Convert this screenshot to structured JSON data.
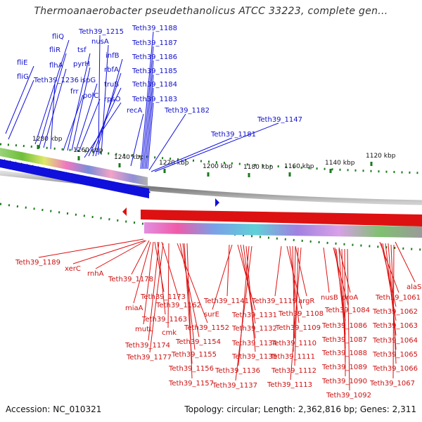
{
  "title": "Thermoanaerobacter pseudethanolicus ATCC 33223, complete gen...",
  "footer": {
    "accession": "Accession: NC_010321",
    "topology": "Topology: circular; Length: 2,362,816 bp; Genes: 2,311"
  },
  "colors": {
    "forward": "#1010dd",
    "reverse": "#dd1111",
    "tick": "#1a7a1a",
    "backbone": "#888888"
  },
  "scale_labels": [
    "1280 kbp",
    "1260 kbp",
    "1240 kbp",
    "1220 kbp",
    "1200 kbp",
    "1180 kbp",
    "1160 kbp",
    "1140 kbp",
    "1120 kbp"
  ],
  "forward_genes": [
    "fliE",
    "fliG",
    "fliQ",
    "fliR",
    "flhA",
    "Teth39_1236",
    "tsf",
    "pyrH",
    "frr",
    "ispG",
    "polC",
    "Teth39_1215",
    "nusA",
    "infB",
    "rbfA",
    "truB",
    "rpsO",
    "recA",
    "Teth39_1188",
    "Teth39_1187",
    "Teth39_1186",
    "Teth39_1185",
    "Teth39_1184",
    "Teth39_1183",
    "Teth39_1182",
    "Teth39_1181",
    "Teth39_1147"
  ],
  "reverse_genes": [
    "Teth39_1189",
    "xerC",
    "rnhA",
    "Teth39_1178",
    "Teth39_1173",
    "miaA",
    "Teth39_1162",
    "Teth39_1163",
    "mutL",
    "cmk",
    "Teth39_1174",
    "Teth39_1177",
    "Teth39_1152",
    "Teth39_1154",
    "Teth39_1155",
    "Teth39_1156",
    "Teth39_1157",
    "Teth39_1141",
    "surE",
    "Teth39_1131",
    "Teth39_1132",
    "Teth39_1134",
    "Teth39_1135",
    "Teth39_1136",
    "Teth39_1137",
    "Teth39_1119",
    "argR",
    "Teth39_1108",
    "Teth39_1109",
    "Teth39_1110",
    "Teth39_1111",
    "Teth39_1112",
    "Teth39_1113",
    "nusB",
    "proA",
    "Teth39_1084",
    "Teth39_1086",
    "Teth39_1087",
    "Teth39_1088",
    "Teth39_1089",
    "Teth39_1090",
    "Teth39_1092",
    "alaS",
    "Teth39_1061",
    "Teth39_1062",
    "Teth39_1063",
    "Teth39_1064",
    "Teth39_1065",
    "Teth39_1066",
    "Teth39_1067"
  ]
}
